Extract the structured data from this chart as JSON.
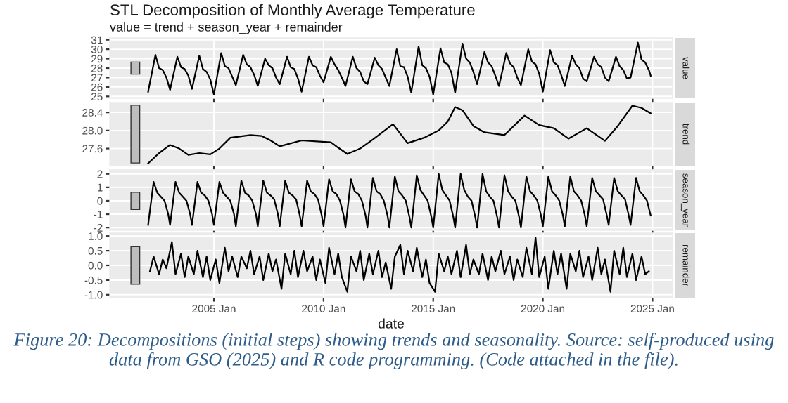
{
  "chart_data": [
    {
      "type": "line",
      "title": "STL Decomposition of Monthly Average Temperature",
      "subtitle": "value = trend + season_year + remainder",
      "ylabel": "value",
      "tick_labels": "y",
      "grid": true,
      "xlim": [
        "2000-04",
        "2025-12"
      ],
      "xticks": [
        {
          "value": "2005-01",
          "label": null
        },
        {
          "value": "2010-01",
          "label": null
        },
        {
          "value": "2015-01",
          "label": null
        },
        {
          "value": "2020-01",
          "label": null
        },
        {
          "value": "2025-01",
          "label": null
        }
      ],
      "ylim": [
        24.8,
        31.2
      ],
      "yticks": [
        25,
        26,
        27,
        28,
        29,
        30,
        31
      ],
      "series": [
        {
          "type": "bar",
          "color": "#bebebe",
          "x": [
            "2001-06"
          ],
          "base": [
            27.36
          ],
          "values": [
            1.28
          ]
        },
        {
          "color": "#000000",
          "x": [
            "2002-01",
            "2002-05",
            "2002-07",
            "2002-09",
            "2002-11",
            "2003-01",
            "2003-05",
            "2003-07",
            "2003-09",
            "2003-11",
            "2004-01",
            "2004-05",
            "2004-07",
            "2004-09",
            "2004-11",
            "2005-01",
            "2005-05",
            "2005-07",
            "2005-09",
            "2005-11",
            "2006-01",
            "2006-05",
            "2006-07",
            "2006-09",
            "2006-11",
            "2007-01",
            "2007-05",
            "2007-07",
            "2007-09",
            "2007-11",
            "2008-01",
            "2008-05",
            "2008-07",
            "2008-09",
            "2008-11",
            "2009-01",
            "2009-05",
            "2009-07",
            "2009-09",
            "2009-11",
            "2010-01",
            "2010-05",
            "2010-07",
            "2010-09",
            "2010-11",
            "2011-01",
            "2011-05",
            "2011-07",
            "2011-09",
            "2011-11",
            "2012-01",
            "2012-05",
            "2012-07",
            "2012-09",
            "2012-11",
            "2013-01",
            "2013-05",
            "2013-07",
            "2013-09",
            "2013-11",
            "2014-01",
            "2014-05",
            "2014-07",
            "2014-09",
            "2014-11",
            "2015-01",
            "2015-05",
            "2015-07",
            "2015-09",
            "2015-11",
            "2016-01",
            "2016-05",
            "2016-07",
            "2016-09",
            "2016-11",
            "2017-01",
            "2017-05",
            "2017-07",
            "2017-09",
            "2017-11",
            "2018-01",
            "2018-05",
            "2018-07",
            "2018-09",
            "2018-11",
            "2019-01",
            "2019-05",
            "2019-07",
            "2019-09",
            "2019-11",
            "2020-01",
            "2020-05",
            "2020-07",
            "2020-09",
            "2020-11",
            "2021-01",
            "2021-05",
            "2021-07",
            "2021-09",
            "2021-11",
            "2022-01",
            "2022-05",
            "2022-07",
            "2022-09",
            "2022-11",
            "2023-01",
            "2023-05",
            "2023-07",
            "2023-09",
            "2023-11",
            "2024-01",
            "2024-05",
            "2024-07",
            "2024-09",
            "2024-11",
            "2024-12"
          ],
          "values": [
            25.5,
            29.4,
            28.0,
            27.8,
            27.0,
            25.7,
            29.2,
            28.1,
            27.9,
            27.2,
            25.8,
            29.3,
            27.9,
            27.6,
            26.8,
            25.2,
            29.6,
            28.2,
            28.0,
            27.1,
            26.2,
            29.4,
            28.4,
            28.1,
            27.3,
            26.1,
            29.0,
            28.3,
            28.0,
            27.0,
            26.3,
            29.2,
            28.1,
            27.9,
            26.9,
            25.5,
            29.2,
            28.3,
            28.1,
            27.2,
            26.5,
            29.2,
            28.4,
            27.8,
            27.0,
            26.1,
            29.2,
            28.0,
            27.6,
            26.6,
            26.3,
            29.1,
            28.3,
            27.9,
            27.0,
            26.1,
            30.0,
            28.2,
            28.1,
            27.1,
            25.4,
            30.3,
            28.3,
            28.0,
            27.1,
            25.2,
            30.1,
            28.6,
            28.4,
            27.5,
            25.4,
            30.6,
            29.0,
            28.6,
            27.6,
            26.3,
            29.7,
            28.6,
            28.2,
            27.2,
            26.1,
            29.6,
            28.5,
            28.1,
            27.0,
            26.2,
            30.0,
            28.7,
            28.4,
            27.4,
            25.5,
            29.9,
            28.6,
            28.3,
            27.3,
            26.1,
            29.3,
            28.4,
            28.0,
            26.9,
            26.6,
            29.2,
            28.4,
            28.1,
            27.0,
            26.6,
            29.2,
            28.2,
            27.8,
            26.9,
            27.0,
            30.7,
            28.9,
            28.6,
            27.8,
            27.2
          ]
        }
      ]
    },
    {
      "type": "line",
      "ylabel": "trend",
      "tick_labels": "y",
      "grid": true,
      "xlim": [
        "2000-04",
        "2025-12"
      ],
      "xticks": [
        {
          "value": "2005-01",
          "label": null
        },
        {
          "value": "2010-01",
          "label": null
        },
        {
          "value": "2015-01",
          "label": null
        },
        {
          "value": "2020-01",
          "label": null
        },
        {
          "value": "2025-01",
          "label": null
        }
      ],
      "ylim": [
        27.22,
        28.62
      ],
      "yticks": [
        {
          "value": 27.6,
          "label": "27.6"
        },
        {
          "value": 28.0,
          "label": "28.0"
        },
        {
          "value": 28.4,
          "label": "28.4"
        }
      ],
      "series": [
        {
          "type": "bar",
          "color": "#bebebe",
          "x": [
            "2001-06"
          ],
          "base": [
            27.28
          ],
          "values": [
            1.28
          ]
        },
        {
          "color": "#000000",
          "x": [
            "2002-01",
            "2002-07",
            "2003-01",
            "2003-06",
            "2003-11",
            "2004-05",
            "2004-11",
            "2005-04",
            "2005-10",
            "2006-09",
            "2007-03",
            "2007-08",
            "2008-01",
            "2009-01",
            "2010-05",
            "2010-09",
            "2011-02",
            "2011-09",
            "2012-04",
            "2013-03",
            "2013-11",
            "2014-08",
            "2015-04",
            "2015-09",
            "2016-01",
            "2016-05",
            "2016-11",
            "2017-05",
            "2018-04",
            "2019-03",
            "2019-11",
            "2020-07",
            "2021-03",
            "2022-01",
            "2022-11",
            "2023-06",
            "2024-02",
            "2024-07",
            "2024-12"
          ],
          "values": [
            27.27,
            27.5,
            27.68,
            27.6,
            27.46,
            27.5,
            27.47,
            27.6,
            27.84,
            27.9,
            27.88,
            27.78,
            27.65,
            27.78,
            27.74,
            27.62,
            27.48,
            27.6,
            27.8,
            28.14,
            27.72,
            27.84,
            28.0,
            28.2,
            28.52,
            28.45,
            28.1,
            27.96,
            27.9,
            28.33,
            28.12,
            28.05,
            27.82,
            28.05,
            27.77,
            28.1,
            28.55,
            28.5,
            28.38
          ]
        }
      ]
    },
    {
      "type": "line",
      "ylabel": "season_year",
      "tick_labels": "y",
      "grid": true,
      "xlim": [
        "2000-04",
        "2025-12"
      ],
      "xticks": [
        {
          "value": "2005-01",
          "label": null
        },
        {
          "value": "2010-01",
          "label": null
        },
        {
          "value": "2015-01",
          "label": null
        },
        {
          "value": "2020-01",
          "label": null
        },
        {
          "value": "2025-01",
          "label": null
        }
      ],
      "ylim": [
        -2.2,
        2.3
      ],
      "yticks": [
        -2,
        -1,
        0,
        1,
        2
      ],
      "series": [
        {
          "type": "bar",
          "color": "#bebebe",
          "x": [
            "2001-06"
          ],
          "base": [
            -0.64
          ],
          "values": [
            1.28
          ]
        },
        {
          "color": "#000000",
          "x": [
            "2002-01",
            "2002-04",
            "2002-06",
            "2002-08",
            "2002-10",
            "2002-12",
            "2003-01",
            "2003-04",
            "2003-06",
            "2003-08",
            "2003-10",
            "2003-12",
            "2004-01",
            "2004-04",
            "2004-06",
            "2004-08",
            "2004-10",
            "2004-12",
            "2005-01",
            "2005-04",
            "2005-06",
            "2005-08",
            "2005-10",
            "2005-12",
            "2006-01",
            "2006-04",
            "2006-06",
            "2006-08",
            "2006-10",
            "2006-12",
            "2007-01",
            "2007-04",
            "2007-06",
            "2007-08",
            "2007-10",
            "2007-12",
            "2008-01",
            "2008-04",
            "2008-06",
            "2008-08",
            "2008-10",
            "2008-12",
            "2009-01",
            "2009-04",
            "2009-06",
            "2009-08",
            "2009-10",
            "2009-12",
            "2010-01",
            "2010-04",
            "2010-06",
            "2010-08",
            "2010-10",
            "2010-12",
            "2011-01",
            "2011-04",
            "2011-06",
            "2011-08",
            "2011-10",
            "2011-12",
            "2012-01",
            "2012-04",
            "2012-06",
            "2012-08",
            "2012-10",
            "2012-12",
            "2013-01",
            "2013-04",
            "2013-06",
            "2013-08",
            "2013-10",
            "2013-12",
            "2014-01",
            "2014-04",
            "2014-06",
            "2014-08",
            "2014-10",
            "2014-12",
            "2015-01",
            "2015-04",
            "2015-06",
            "2015-08",
            "2015-10",
            "2015-12",
            "2016-01",
            "2016-04",
            "2016-06",
            "2016-08",
            "2016-10",
            "2016-12",
            "2017-01",
            "2017-04",
            "2017-06",
            "2017-08",
            "2017-10",
            "2017-12",
            "2018-01",
            "2018-04",
            "2018-06",
            "2018-08",
            "2018-10",
            "2018-12",
            "2019-01",
            "2019-04",
            "2019-06",
            "2019-08",
            "2019-10",
            "2019-12",
            "2020-01",
            "2020-04",
            "2020-06",
            "2020-08",
            "2020-10",
            "2020-12",
            "2021-01",
            "2021-04",
            "2021-06",
            "2021-08",
            "2021-10",
            "2021-12",
            "2022-01",
            "2022-04",
            "2022-06",
            "2022-08",
            "2022-10",
            "2022-12",
            "2023-01",
            "2023-04",
            "2023-06",
            "2023-08",
            "2023-10",
            "2023-12",
            "2024-01",
            "2024-04",
            "2024-06",
            "2024-08",
            "2024-10",
            "2024-12"
          ],
          "values": [
            -1.8,
            1.4,
            0.6,
            0.3,
            0.0,
            -1.0,
            -1.8,
            1.4,
            0.6,
            0.3,
            0.0,
            -1.0,
            -1.8,
            1.4,
            0.6,
            0.4,
            0.0,
            -1.0,
            -1.8,
            1.4,
            0.6,
            0.3,
            0.0,
            -1.0,
            -1.9,
            1.5,
            0.6,
            0.4,
            0.0,
            -1.0,
            -1.9,
            1.5,
            0.6,
            0.4,
            0.1,
            -1.0,
            -1.9,
            1.5,
            0.6,
            0.4,
            0.1,
            -1.1,
            -1.9,
            1.5,
            0.7,
            0.5,
            0.1,
            -1.1,
            -1.9,
            1.6,
            0.7,
            0.5,
            0.0,
            -1.1,
            -2.0,
            1.6,
            0.7,
            0.5,
            0.0,
            -1.1,
            -2.0,
            1.7,
            0.7,
            0.5,
            0.0,
            -1.1,
            -2.0,
            1.8,
            0.7,
            0.4,
            0.0,
            -1.2,
            -2.0,
            1.9,
            0.8,
            0.4,
            0.0,
            -1.2,
            -2.0,
            2.0,
            0.8,
            0.4,
            0.0,
            -1.2,
            -2.0,
            2.0,
            0.8,
            0.3,
            0.0,
            -1.2,
            -2.0,
            2.0,
            0.7,
            0.3,
            0.0,
            -1.2,
            -2.0,
            1.9,
            0.7,
            0.3,
            0.0,
            -1.2,
            -2.0,
            1.8,
            0.7,
            0.4,
            0.0,
            -1.1,
            -1.9,
            1.8,
            0.7,
            0.4,
            0.0,
            -1.1,
            -1.9,
            1.8,
            0.7,
            0.4,
            0.0,
            -1.1,
            -1.9,
            1.7,
            0.7,
            0.4,
            0.1,
            -1.1,
            -1.8,
            1.7,
            0.7,
            0.4,
            0.1,
            -1.1,
            -1.8,
            1.7,
            0.7,
            0.4,
            0.0,
            -1.1
          ]
        }
      ]
    },
    {
      "type": "line",
      "ylabel": "remainder",
      "xlabel": "date",
      "grid": true,
      "xlim": [
        "2000-04",
        "2025-12"
      ],
      "xticks": [
        {
          "value": "2005-01",
          "label": "2005 Jan"
        },
        {
          "value": "2010-01",
          "label": "2010 Jan"
        },
        {
          "value": "2015-01",
          "label": "2015 Jan"
        },
        {
          "value": "2020-01",
          "label": "2020 Jan"
        },
        {
          "value": "2025-01",
          "label": "2025 Jan"
        }
      ],
      "ylim": [
        -1.1,
        1.1
      ],
      "yticks": [
        {
          "value": -1.0,
          "label": "-1.0"
        },
        {
          "value": -0.5,
          "label": "-0.5"
        },
        {
          "value": 0.0,
          "label": "0.0"
        },
        {
          "value": 0.5,
          "label": "0.5"
        },
        {
          "value": 1.0,
          "label": "1.0"
        }
      ],
      "annotations": [
        "Figure 20: Decompositions (initial steps) showing trends and seasonality. Source: self-produced using data from GSO (2025) and R code programming. (Code attached in the file)."
      ],
      "series": [
        {
          "type": "bar",
          "color": "#bebebe",
          "x": [
            "2001-06"
          ],
          "base": [
            -0.64
          ],
          "values": [
            1.28
          ]
        },
        {
          "color": "#000000",
          "x": [
            "2002-02",
            "2002-04",
            "2002-07",
            "2002-09",
            "2002-11",
            "2003-02",
            "2003-04",
            "2003-07",
            "2003-09",
            "2003-11",
            "2004-02",
            "2004-04",
            "2004-07",
            "2004-09",
            "2004-11",
            "2005-02",
            "2005-04",
            "2005-07",
            "2005-09",
            "2005-11",
            "2006-02",
            "2006-04",
            "2006-07",
            "2006-09",
            "2006-11",
            "2007-02",
            "2007-04",
            "2007-07",
            "2007-09",
            "2007-11",
            "2008-02",
            "2008-04",
            "2008-07",
            "2008-09",
            "2008-11",
            "2009-02",
            "2009-04",
            "2009-07",
            "2009-09",
            "2009-11",
            "2010-02",
            "2010-04",
            "2010-07",
            "2010-09",
            "2010-11",
            "2011-02",
            "2011-04",
            "2011-07",
            "2011-09",
            "2011-11",
            "2012-02",
            "2012-04",
            "2012-07",
            "2012-09",
            "2012-11",
            "2013-02",
            "2013-04",
            "2013-07",
            "2013-09",
            "2013-11",
            "2014-02",
            "2014-04",
            "2014-07",
            "2014-09",
            "2014-11",
            "2015-02",
            "2015-04",
            "2015-07",
            "2015-09",
            "2015-11",
            "2016-02",
            "2016-04",
            "2016-07",
            "2016-09",
            "2016-11",
            "2017-02",
            "2017-04",
            "2017-07",
            "2017-09",
            "2017-11",
            "2018-02",
            "2018-04",
            "2018-07",
            "2018-09",
            "2018-11",
            "2019-02",
            "2019-04",
            "2019-07",
            "2019-09",
            "2019-11",
            "2020-02",
            "2020-04",
            "2020-07",
            "2020-09",
            "2020-11",
            "2021-02",
            "2021-04",
            "2021-07",
            "2021-09",
            "2021-11",
            "2022-02",
            "2022-04",
            "2022-07",
            "2022-09",
            "2022-11",
            "2023-02",
            "2023-04",
            "2023-07",
            "2023-09",
            "2023-11",
            "2024-02",
            "2024-04",
            "2024-07",
            "2024-09",
            "2024-11"
          ],
          "values": [
            -0.2,
            0.3,
            -0.3,
            0.2,
            -0.1,
            0.8,
            -0.3,
            0.4,
            -0.4,
            0.3,
            -0.3,
            0.5,
            -0.4,
            0.3,
            -0.5,
            0.2,
            -0.6,
            0.6,
            -0.2,
            0.3,
            -0.4,
            0.3,
            -0.1,
            0.5,
            -0.3,
            0.3,
            -0.5,
            0.4,
            -0.2,
            0.2,
            -0.8,
            0.4,
            -0.3,
            0.5,
            -0.4,
            0.5,
            -0.2,
            0.3,
            -0.5,
            0.2,
            -0.6,
            0.6,
            -0.3,
            0.4,
            -0.4,
            -0.9,
            0.3,
            -0.2,
            0.5,
            -0.5,
            0.4,
            -0.3,
            0.5,
            -0.4,
            0.1,
            -0.8,
            0.3,
            0.7,
            -0.3,
            0.5,
            -0.2,
            0.6,
            -0.4,
            0.2,
            -0.6,
            -0.9,
            0.4,
            -0.2,
            0.3,
            -0.3,
            0.5,
            -0.4,
            0.7,
            -0.3,
            0.2,
            -0.3,
            0.4,
            -0.5,
            0.3,
            -0.2,
            0.5,
            -0.3,
            0.3,
            -0.5,
            0.2,
            -0.4,
            0.6,
            -0.3,
            0.95,
            -0.4,
            0.3,
            -0.8,
            0.5,
            -0.3,
            0.4,
            -0.8,
            0.4,
            -0.2,
            0.5,
            -0.4,
            0.3,
            -0.5,
            0.6,
            -0.3,
            0.2,
            -0.9,
            0.5,
            -0.3,
            0.6,
            -0.4,
            0.4,
            -0.5,
            0.3,
            -0.3,
            -0.2
          ]
        }
      ]
    }
  ]
}
